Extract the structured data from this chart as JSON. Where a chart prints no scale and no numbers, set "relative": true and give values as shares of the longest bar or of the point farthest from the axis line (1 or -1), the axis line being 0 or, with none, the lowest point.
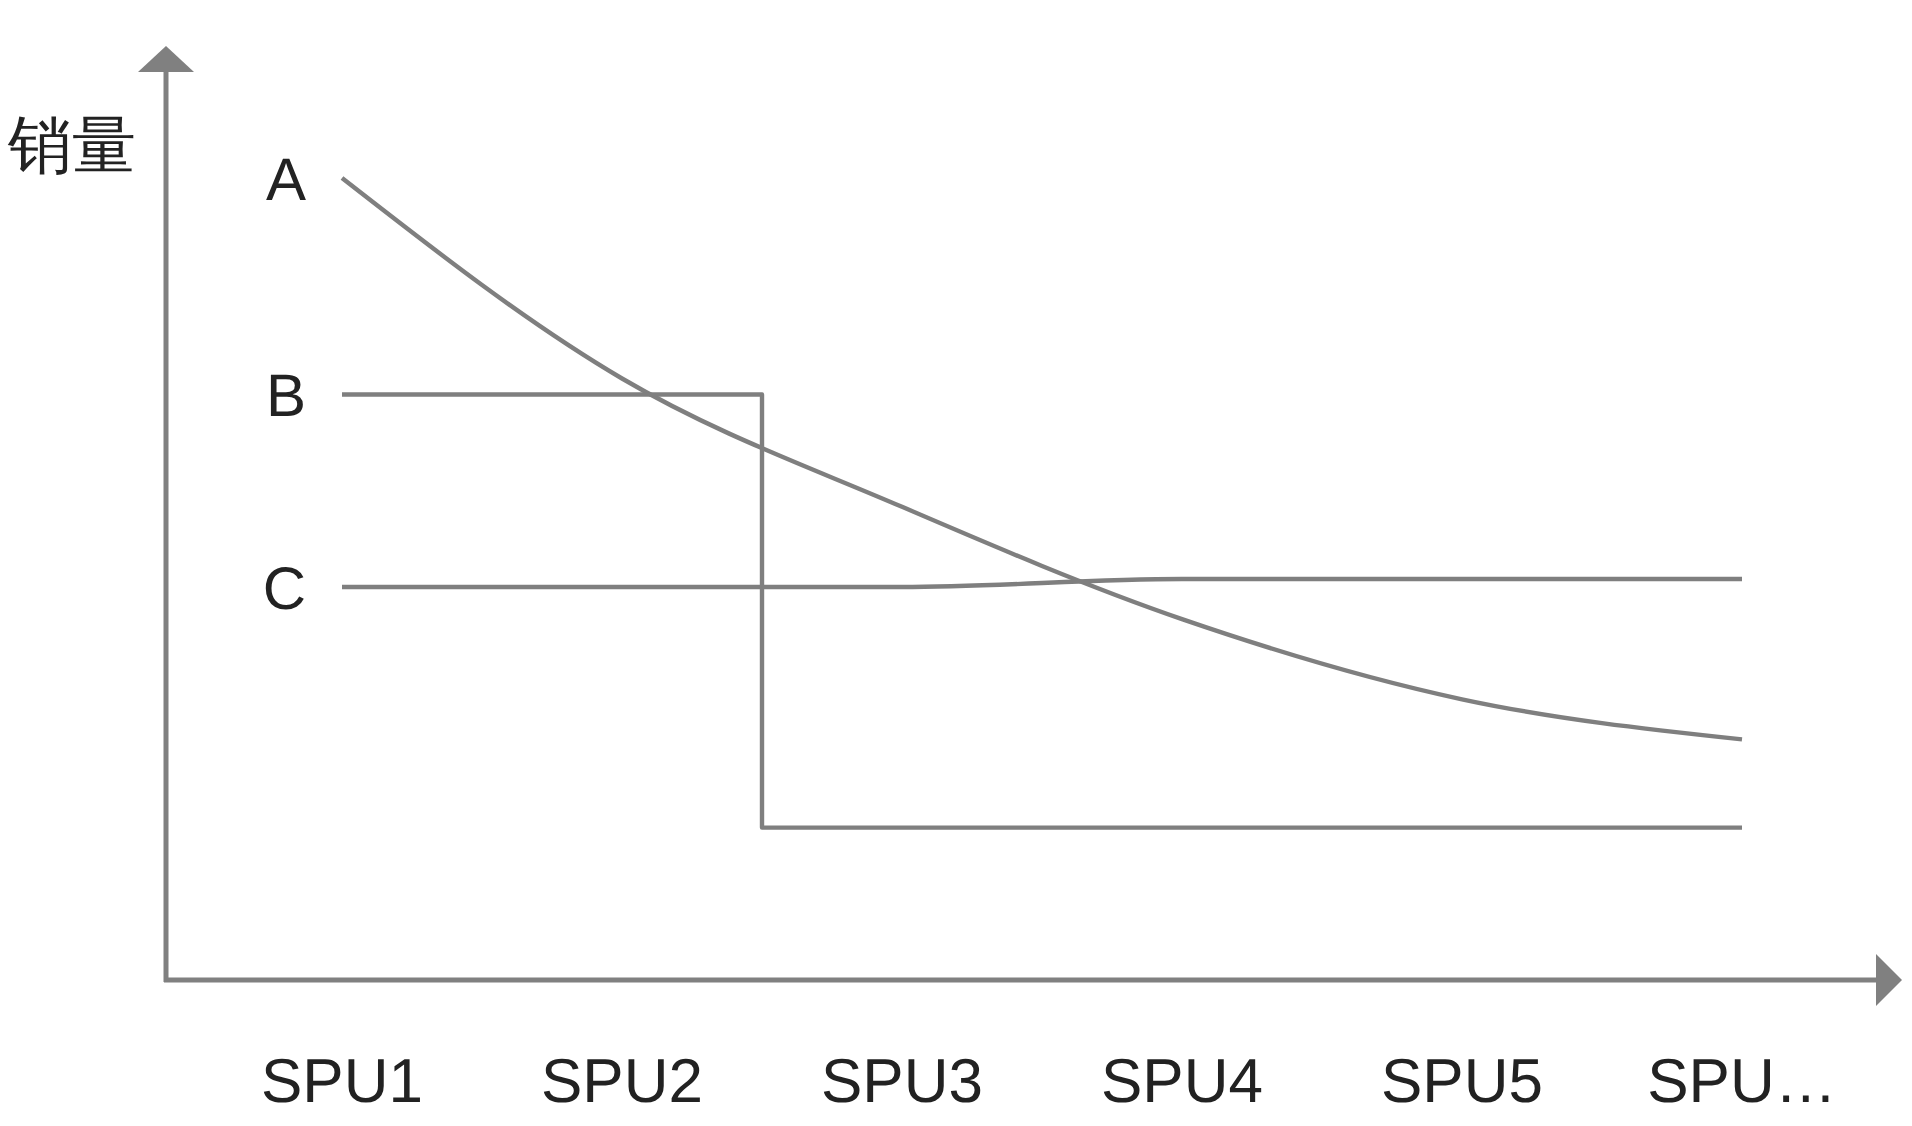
{
  "chart_data": {
    "type": "line",
    "ylabel": "销量",
    "relative": true,
    "categories": [
      "SPU1",
      "SPU2",
      "SPU3",
      "SPU4",
      "SPU5",
      "SPU…"
    ],
    "series": [
      {
        "name": "A",
        "color": "#7f7f7f",
        "values": [
          1,
          0.75,
          0.59,
          0.45,
          0.35,
          0.3
        ]
      },
      {
        "name": "B",
        "type": "step",
        "color": "#7f7f7f",
        "values": [
          0.73,
          0.73,
          0.19,
          0.19,
          0.19,
          0.19
        ]
      },
      {
        "name": "C",
        "color": "#7f7f7f",
        "values": [
          0.49,
          0.49,
          0.49,
          0.5,
          0.5,
          0.5
        ]
      }
    ]
  }
}
